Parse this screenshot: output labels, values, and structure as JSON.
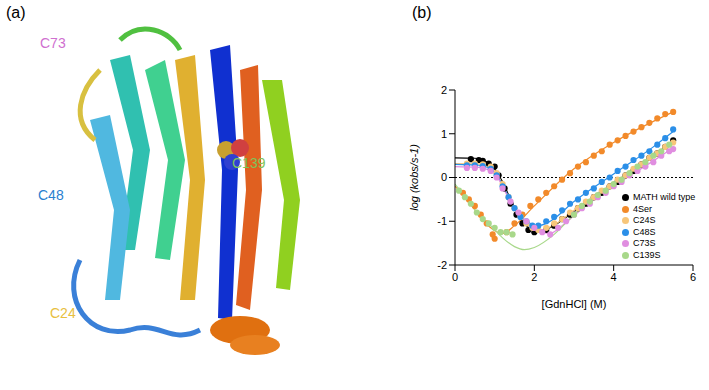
{
  "structure_panel": {
    "label": "(a)",
    "labels": [
      {
        "text": "C73",
        "color": "#d070d0"
      },
      {
        "text": "C48",
        "color": "#2a7fd0"
      },
      {
        "text": "C139",
        "color": "#7cc45a"
      },
      {
        "text": "C24",
        "color": "#e8c040"
      }
    ]
  },
  "chart_data": {
    "type": "scatter",
    "panel_label": "(b)",
    "xlabel": "[GdnHCl] (M)",
    "ylabel": "log (kobs/s-1)",
    "xlim": [
      0,
      6
    ],
    "xticks": [
      0,
      2,
      4,
      6
    ],
    "ylim": [
      -2,
      2
    ],
    "yticks": [
      -2,
      -1,
      0,
      1,
      2
    ],
    "hline": 0,
    "legend": "lower right",
    "marker": "circle",
    "series": [
      {
        "name": "MATH wild type",
        "color": "#000000",
        "x": [
          0.4,
          0.6,
          0.7,
          0.85,
          1.0,
          1.1,
          1.25,
          1.4,
          1.55,
          1.7,
          1.85,
          2.0,
          2.3,
          2.5,
          2.7,
          2.9,
          3.1,
          3.3,
          3.5,
          3.7,
          3.9,
          4.1,
          4.3,
          4.5,
          4.7,
          4.9,
          5.1,
          5.3,
          5.5
        ],
        "values": [
          0.42,
          0.4,
          0.38,
          0.32,
          0.25,
          0.05,
          -0.25,
          -0.6,
          -0.85,
          -1.05,
          -1.2,
          -1.25,
          -1.2,
          -1.1,
          -0.95,
          -0.85,
          -0.7,
          -0.6,
          -0.45,
          -0.35,
          -0.2,
          -0.1,
          0.05,
          0.15,
          0.3,
          0.45,
          0.55,
          0.7,
          0.85
        ],
        "fit_x": [
          0,
          0.5,
          0.9,
          1.2,
          1.5,
          1.8,
          2.0,
          2.3,
          3,
          4,
          5,
          5.5
        ],
        "fit_values": [
          0.45,
          0.44,
          0.3,
          -0.1,
          -0.7,
          -1.1,
          -1.22,
          -1.18,
          -0.78,
          -0.15,
          0.48,
          0.85
        ]
      },
      {
        "name": "4Ser",
        "color": "#f28a2a",
        "x": [
          0.2,
          0.35,
          0.5,
          0.65,
          0.8,
          0.95,
          1.0,
          1.3,
          1.5,
          1.7,
          1.9,
          2.1,
          2.3,
          2.5,
          2.7,
          2.9,
          3.1,
          3.3,
          3.5,
          3.7,
          3.9,
          4.1,
          4.3,
          4.5,
          4.7,
          4.9,
          5.1,
          5.3,
          5.5
        ],
        "values": [
          -0.35,
          -0.5,
          -0.65,
          -0.85,
          -1.05,
          -1.3,
          -1.4,
          -1.25,
          -1.05,
          -0.85,
          -0.65,
          -0.5,
          -0.35,
          -0.2,
          -0.05,
          0.1,
          0.25,
          0.35,
          0.5,
          0.6,
          0.75,
          0.85,
          0.95,
          1.05,
          1.15,
          1.25,
          1.35,
          1.45,
          1.5
        ],
        "fit_x": [
          0,
          0.3,
          0.6,
          0.9,
          1.2,
          1.5,
          2,
          3,
          4,
          5.5
        ],
        "fit_values": [
          -0.2,
          -0.5,
          -0.85,
          -1.15,
          -1.28,
          -1.1,
          -0.65,
          0.2,
          0.8,
          1.5
        ]
      },
      {
        "name": "C24S",
        "color": "#f7c67a",
        "x": [
          0.3,
          0.5,
          0.7,
          0.9,
          1.05,
          1.2,
          1.35,
          1.5,
          1.65,
          1.8,
          1.95,
          2.1,
          2.3,
          2.5,
          2.7,
          2.9,
          3.1,
          3.3,
          3.5,
          3.7,
          3.9,
          4.1,
          4.3,
          4.5,
          4.7,
          4.9,
          5.1,
          5.3,
          5.5
        ],
        "values": [
          0.32,
          0.32,
          0.3,
          0.25,
          0.1,
          -0.15,
          -0.45,
          -0.7,
          -0.9,
          -1.05,
          -1.15,
          -1.2,
          -1.15,
          -1.05,
          -0.95,
          -0.8,
          -0.7,
          -0.55,
          -0.45,
          -0.3,
          -0.2,
          -0.05,
          0.05,
          0.2,
          0.3,
          0.45,
          0.55,
          0.7,
          0.8
        ],
        "fit_x": [
          0,
          0.6,
          1.0,
          1.3,
          1.6,
          1.9,
          2.15,
          2.5,
          3,
          4,
          5,
          5.5
        ],
        "fit_values": [
          0.32,
          0.31,
          0.15,
          -0.35,
          -0.85,
          -1.12,
          -1.2,
          -1.08,
          -0.75,
          -0.12,
          0.5,
          0.82
        ]
      },
      {
        "name": "C48S",
        "color": "#2b8fe8",
        "x": [
          0.3,
          0.5,
          0.7,
          0.9,
          1.05,
          1.2,
          1.35,
          1.5,
          1.65,
          1.8,
          1.95,
          2.1,
          2.3,
          2.5,
          2.7,
          2.9,
          3.1,
          3.3,
          3.5,
          3.7,
          3.9,
          4.1,
          4.3,
          4.5,
          4.7,
          4.9,
          5.1,
          5.3,
          5.5
        ],
        "values": [
          0.28,
          0.28,
          0.26,
          0.2,
          0.05,
          -0.2,
          -0.45,
          -0.7,
          -0.9,
          -1.0,
          -1.1,
          -1.1,
          -1.0,
          -0.9,
          -0.75,
          -0.6,
          -0.5,
          -0.35,
          -0.25,
          -0.1,
          0.0,
          0.15,
          0.25,
          0.4,
          0.5,
          0.6,
          0.75,
          0.9,
          1.1
        ],
        "fit_x": [
          0,
          0.6,
          1.0,
          1.3,
          1.6,
          1.9,
          2.1,
          2.4,
          3,
          4,
          5,
          5.5
        ],
        "fit_values": [
          0.3,
          0.28,
          0.12,
          -0.35,
          -0.82,
          -1.05,
          -1.1,
          -1.0,
          -0.55,
          0.08,
          0.7,
          1.05
        ]
      },
      {
        "name": "C73S",
        "color": "#e08ee0",
        "x": [
          0.3,
          0.5,
          0.7,
          0.9,
          1.05,
          1.2,
          1.4,
          1.6,
          1.8,
          2.0,
          2.2,
          2.4,
          2.6,
          2.8,
          3.0,
          3.2,
          3.4,
          3.6,
          3.8,
          4.0,
          4.2,
          4.4,
          4.6,
          4.8,
          5.0,
          5.2,
          5.4,
          5.5
        ],
        "values": [
          0.22,
          0.22,
          0.2,
          0.15,
          0.0,
          -0.25,
          -0.55,
          -0.8,
          -1.0,
          -1.15,
          -1.25,
          -1.3,
          -1.15,
          -1.0,
          -0.85,
          -0.7,
          -0.6,
          -0.45,
          -0.35,
          -0.2,
          -0.1,
          0.05,
          0.15,
          0.25,
          0.35,
          0.5,
          0.6,
          0.65
        ],
        "fit_x": [
          0,
          0.6,
          1.0,
          1.4,
          1.8,
          2.2,
          2.4,
          2.7,
          3.2,
          4,
          5,
          5.5
        ],
        "fit_values": [
          0.25,
          0.23,
          0.08,
          -0.55,
          -1.02,
          -1.25,
          -1.28,
          -1.1,
          -0.72,
          -0.2,
          0.38,
          0.68
        ]
      },
      {
        "name": "C139S",
        "color": "#a8d88a",
        "x": [
          0.1,
          0.25,
          0.4,
          0.55,
          0.7,
          0.85,
          1.0,
          1.15,
          1.3,
          1.45,
          3.0,
          3.2,
          3.4,
          3.6,
          3.8,
          4.0,
          4.2,
          4.4,
          4.6,
          4.8,
          5.0,
          5.2,
          5.4
        ],
        "values": [
          -0.3,
          -0.45,
          -0.6,
          -0.8,
          -0.95,
          -1.05,
          -1.15,
          -1.25,
          -1.25,
          -1.3,
          -0.85,
          -0.65,
          -0.55,
          -0.4,
          -0.3,
          -0.15,
          -0.05,
          0.1,
          0.25,
          0.35,
          0.5,
          0.6,
          0.75
        ],
        "fit_x": [
          0,
          0.3,
          0.6,
          0.9,
          1.2,
          1.5,
          1.75,
          2.0,
          2.5,
          3,
          4,
          5,
          5.5
        ],
        "fit_values": [
          -0.15,
          -0.5,
          -0.85,
          -1.1,
          -1.38,
          -1.58,
          -1.65,
          -1.6,
          -1.3,
          -0.85,
          -0.15,
          0.5,
          0.82
        ]
      }
    ]
  }
}
